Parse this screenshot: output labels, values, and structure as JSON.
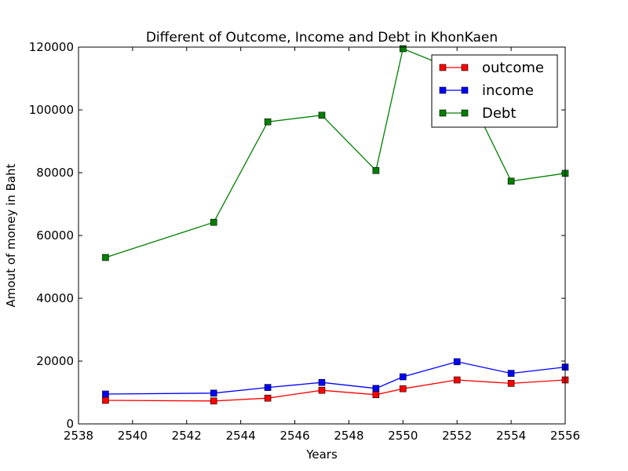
{
  "chart_data": {
    "type": "line",
    "title": "Different of Outcome, Income and Debt in KhonKaen",
    "xlabel": "Years",
    "ylabel": "Amout of money in Baht",
    "xlim": [
      2538,
      2556
    ],
    "ylim": [
      0,
      120000
    ],
    "xticks": [
      2538,
      2540,
      2542,
      2544,
      2546,
      2548,
      2550,
      2552,
      2554,
      2556
    ],
    "yticks": [
      0,
      20000,
      40000,
      60000,
      80000,
      100000,
      120000
    ],
    "grid": false,
    "legend_position": "top-right",
    "x": [
      2539,
      2543,
      2545,
      2547,
      2549,
      2550,
      2552,
      2554,
      2556
    ],
    "series": [
      {
        "name": "outcome",
        "color": "#ff0000",
        "values": [
          7500,
          7300,
          8200,
          10700,
          9300,
          11200,
          14000,
          12900,
          14000
        ]
      },
      {
        "name": "income",
        "color": "#0000ff",
        "values": [
          9500,
          9800,
          11600,
          13200,
          11300,
          15000,
          19800,
          16100,
          18100
        ]
      },
      {
        "name": "Debt",
        "color": "#008000",
        "values": [
          53000,
          64200,
          96200,
          98300,
          80700,
          119500,
          112500,
          77300,
          79800
        ]
      }
    ]
  }
}
